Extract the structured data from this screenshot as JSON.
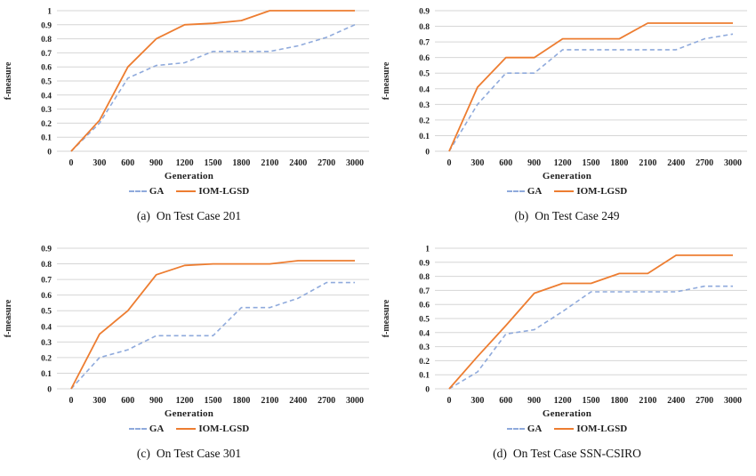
{
  "colors": {
    "ga_line": "#8FAADC",
    "iom_line": "#ED7D31",
    "gridline": "#D6D6D6",
    "axis_text": "#1f1f1f"
  },
  "chart_data": [
    {
      "type": "line",
      "caption_label": "(a)",
      "caption_text": "On Test Case 201",
      "xlabel": "Generation",
      "ylabel": "f-measure",
      "x": [
        0,
        300,
        600,
        900,
        1200,
        1500,
        1800,
        2100,
        2400,
        2700,
        3000
      ],
      "ylim": [
        0,
        1
      ],
      "yticks": [
        "1",
        "0.9",
        "0.8",
        "0.7",
        "0.6",
        "0.5",
        "0.4",
        "0.3",
        "0.2",
        "0.1",
        "0"
      ],
      "grid": true,
      "legend_position": "bottom",
      "series": [
        {
          "name": "GA",
          "style": "dashed",
          "color_key": "ga_line",
          "values": [
            0,
            0.2,
            0.52,
            0.61,
            0.63,
            0.71,
            0.71,
            0.71,
            0.75,
            0.81,
            0.9
          ]
        },
        {
          "name": "IOM-LGSD",
          "style": "solid",
          "color_key": "iom_line",
          "values": [
            0,
            0.22,
            0.6,
            0.8,
            0.9,
            0.91,
            0.93,
            1.0,
            1.0,
            1.0,
            1.0
          ]
        }
      ]
    },
    {
      "type": "line",
      "caption_label": "(b)",
      "caption_text": "On Test Case 249",
      "xlabel": "Generation",
      "ylabel": "f-measure",
      "x": [
        0,
        300,
        600,
        900,
        1200,
        1500,
        1800,
        2100,
        2400,
        2700,
        3000
      ],
      "ylim": [
        0,
        0.9
      ],
      "yticks": [
        "0.9",
        "0.8",
        "0.7",
        "0.6",
        "0.5",
        "0.4",
        "0.3",
        "0.2",
        "0.1",
        "0"
      ],
      "grid": true,
      "legend_position": "bottom",
      "series": [
        {
          "name": "GA",
          "style": "dashed",
          "color_key": "ga_line",
          "values": [
            0,
            0.3,
            0.5,
            0.5,
            0.65,
            0.65,
            0.65,
            0.65,
            0.65,
            0.72,
            0.75
          ]
        },
        {
          "name": "IOM-LGSD",
          "style": "solid",
          "color_key": "iom_line",
          "values": [
            0,
            0.41,
            0.6,
            0.6,
            0.72,
            0.72,
            0.72,
            0.82,
            0.82,
            0.82,
            0.82
          ]
        }
      ]
    },
    {
      "type": "line",
      "caption_label": "(c)",
      "caption_text": "On Test Case 301",
      "xlabel": "Generation",
      "ylabel": "f-measure",
      "x": [
        0,
        300,
        600,
        900,
        1200,
        1500,
        1800,
        2100,
        2400,
        2700,
        3000
      ],
      "ylim": [
        0,
        0.9
      ],
      "yticks": [
        "0.9",
        "0.8",
        "0.7",
        "0.6",
        "0.5",
        "0.4",
        "0.3",
        "0.2",
        "0.1",
        "0"
      ],
      "grid": true,
      "legend_position": "bottom",
      "series": [
        {
          "name": "GA",
          "style": "dashed",
          "color_key": "ga_line",
          "values": [
            0,
            0.2,
            0.25,
            0.34,
            0.34,
            0.34,
            0.52,
            0.52,
            0.58,
            0.68,
            0.68
          ]
        },
        {
          "name": "IOM-LGSD",
          "style": "solid",
          "color_key": "iom_line",
          "values": [
            0,
            0.35,
            0.5,
            0.73,
            0.79,
            0.8,
            0.8,
            0.8,
            0.82,
            0.82,
            0.82
          ]
        }
      ]
    },
    {
      "type": "line",
      "caption_label": "(d)",
      "caption_text": "On Test Case SSN-CSIRO",
      "xlabel": "Generation",
      "ylabel": "f-measure",
      "x": [
        0,
        300,
        600,
        900,
        1200,
        1500,
        1800,
        2100,
        2400,
        2700,
        3000
      ],
      "ylim": [
        0,
        1
      ],
      "yticks": [
        "1",
        "0.9",
        "0.8",
        "0.7",
        "0.6",
        "0.5",
        "0.4",
        "0.3",
        "0.2",
        "0.1",
        "0"
      ],
      "grid": true,
      "legend_position": "bottom",
      "series": [
        {
          "name": "GA",
          "style": "dashed",
          "color_key": "ga_line",
          "values": [
            0,
            0.12,
            0.39,
            0.42,
            0.55,
            0.69,
            0.69,
            0.69,
            0.69,
            0.73,
            0.73
          ]
        },
        {
          "name": "IOM-LGSD",
          "style": "solid",
          "color_key": "iom_line",
          "values": [
            0,
            0.23,
            0.45,
            0.68,
            0.75,
            0.75,
            0.82,
            0.82,
            0.95,
            0.95,
            0.95
          ]
        }
      ]
    }
  ]
}
